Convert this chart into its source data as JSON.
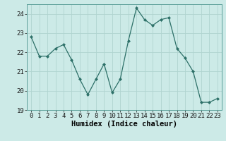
{
  "x": [
    0,
    1,
    2,
    3,
    4,
    5,
    6,
    7,
    8,
    9,
    10,
    11,
    12,
    13,
    14,
    15,
    16,
    17,
    18,
    19,
    20,
    21,
    22,
    23
  ],
  "y": [
    22.8,
    21.8,
    21.8,
    22.2,
    22.4,
    21.6,
    20.6,
    19.8,
    20.6,
    21.4,
    19.9,
    20.6,
    22.6,
    24.3,
    23.7,
    23.4,
    23.7,
    23.8,
    22.2,
    21.7,
    21.0,
    19.4,
    19.4,
    19.6
  ],
  "line_color": "#2d7068",
  "marker_color": "#2d7068",
  "bg_color": "#cceae7",
  "grid_color": "#b0d4d0",
  "xlabel": "Humidex (Indice chaleur)",
  "ylim": [
    19.0,
    24.5
  ],
  "xlim": [
    -0.5,
    23.5
  ],
  "yticks": [
    19,
    20,
    21,
    22,
    23,
    24
  ],
  "xticks": [
    0,
    1,
    2,
    3,
    4,
    5,
    6,
    7,
    8,
    9,
    10,
    11,
    12,
    13,
    14,
    15,
    16,
    17,
    18,
    19,
    20,
    21,
    22,
    23
  ],
  "xlabel_fontsize": 7.5,
  "tick_fontsize": 6.5
}
